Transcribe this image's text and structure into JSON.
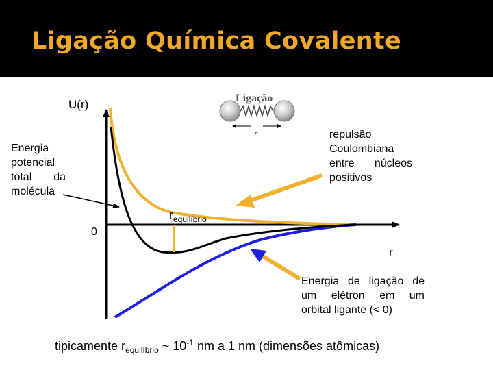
{
  "slide": {
    "title": "Ligação Química Covalente"
  },
  "diagram": {
    "y_axis_label": "U(r)",
    "x_axis_label": "r",
    "origin_label": "0",
    "inset": {
      "title": "Ligação",
      "distance_label": "r"
    },
    "label_total_energy": [
      "Energia",
      "potencial",
      "total da",
      "molécula"
    ],
    "label_repulsion": [
      "repulsão",
      "Coulombiana",
      "entre núcleos",
      "positivos"
    ],
    "label_equilibrium": {
      "main": "r",
      "sub": "equilíbrio"
    },
    "label_bond_energy": [
      "Energia de ligação de",
      "um elétron em um",
      "orbital ligante (< 0)"
    ],
    "colors": {
      "repulsion_curve": "#f0b030",
      "attraction_curve": "#1f1fe0",
      "total_curve": "#000000",
      "arrows": "#f0b030",
      "title": "#f0a82a"
    }
  },
  "footer": {
    "prefix": "tipicamente r",
    "sub": "equilíbrio",
    "middle": " ~ 10",
    "sup": "-1",
    "suffix": " nm a 1 nm (dimensões atômicas)"
  }
}
